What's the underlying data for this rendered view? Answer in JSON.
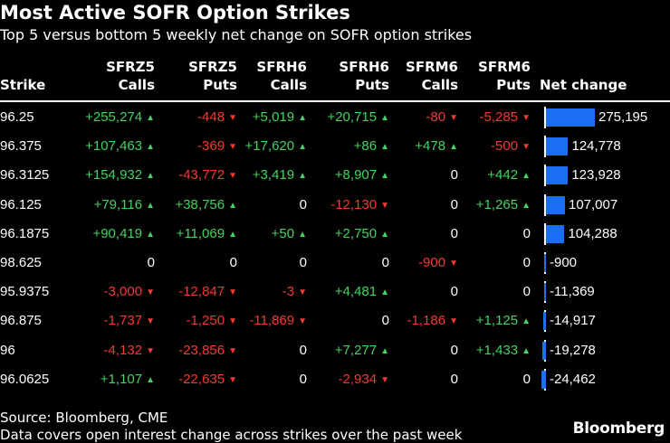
{
  "header": {
    "title": "Most Active SOFR Option Strikes",
    "subtitle": "Top 5 versus bottom 5 weekly net change on SOFR option strikes"
  },
  "columns": [
    {
      "line1": "",
      "line2": "Strike"
    },
    {
      "line1": "SFRZ5",
      "line2": "Calls"
    },
    {
      "line1": "SFRZ5",
      "line2": "Puts"
    },
    {
      "line1": "SFRH6",
      "line2": "Calls"
    },
    {
      "line1": "SFRH6",
      "line2": "Puts"
    },
    {
      "line1": "SFRM6",
      "line2": "Calls"
    },
    {
      "line1": "SFRM6",
      "line2": "Puts"
    },
    {
      "line1": "",
      "line2": "Net change"
    }
  ],
  "chart_data": {
    "type": "table",
    "columns": [
      "Strike",
      "SFRZ5 Calls",
      "SFRZ5 Puts",
      "SFRH6 Calls",
      "SFRH6 Puts",
      "SFRM6 Calls",
      "SFRM6 Puts",
      "Net change"
    ],
    "rows": [
      {
        "strike": "96.25",
        "cells": [
          "+255,274",
          "-448",
          "+5,019",
          "+20,715",
          "-80",
          "-5,285"
        ],
        "net": 275195,
        "net_label": "275,195"
      },
      {
        "strike": "96.375",
        "cells": [
          "+107,463",
          "-369",
          "+17,620",
          "+86",
          "+478",
          "-500"
        ],
        "net": 124778,
        "net_label": "124,778"
      },
      {
        "strike": "96.3125",
        "cells": [
          "+154,932",
          "-43,772",
          "+3,419",
          "+8,907",
          "0",
          "+442"
        ],
        "net": 123928,
        "net_label": "123,928"
      },
      {
        "strike": "96.125",
        "cells": [
          "+79,116",
          "+38,756",
          "0",
          "-12,130",
          "0",
          "+1,265"
        ],
        "net": 107007,
        "net_label": "107,007"
      },
      {
        "strike": "96.1875",
        "cells": [
          "+90,419",
          "+11,069",
          "+50",
          "+2,750",
          "0",
          "0"
        ],
        "net": 104288,
        "net_label": "104,288"
      },
      {
        "strike": "98.625",
        "cells": [
          "0",
          "0",
          "0",
          "0",
          "-900",
          "0"
        ],
        "net": -900,
        "net_label": "-900"
      },
      {
        "strike": "95.9375",
        "cells": [
          "-3,000",
          "-12,847",
          "-3",
          "+4,481",
          "0",
          "0"
        ],
        "net": -11369,
        "net_label": "-11,369"
      },
      {
        "strike": "96.875",
        "cells": [
          "-1,737",
          "-1,250",
          "-11,869",
          "0",
          "-1,186",
          "+1,125"
        ],
        "net": -14917,
        "net_label": "-14,917"
      },
      {
        "strike": "96",
        "cells": [
          "-4,132",
          "-23,856",
          "0",
          "+7,277",
          "0",
          "+1,433"
        ],
        "net": -19278,
        "net_label": "-19,278"
      },
      {
        "strike": "96.0625",
        "cells": [
          "+1,107",
          "-22,635",
          "0",
          "-2,934",
          "0",
          "0"
        ],
        "net": -24462,
        "net_label": "-24,462"
      }
    ]
  },
  "colors": {
    "positive": "#46d160",
    "negative": "#f03a32",
    "bar": "#1a6ff5",
    "background": "#000000"
  },
  "footer": {
    "source": "Source: Bloomberg, CME",
    "note": "Data covers open interest change across strikes over the past week",
    "brand": "Bloomberg"
  }
}
